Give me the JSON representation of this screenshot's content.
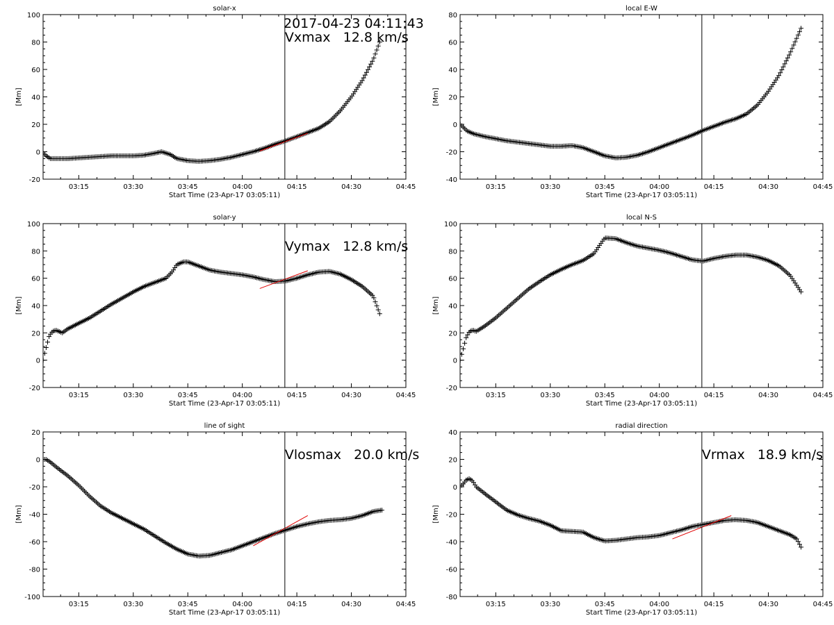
{
  "figure": {
    "timestamp": "2017-04-23 04:11:43"
  },
  "chart_data": [
    {
      "type": "scatter",
      "title": "solar-x",
      "ylabel": "[Mm]",
      "xlabel": "Start Time (23-Apr-17 03:05:11)",
      "annotation": "Vxmax   12.8 km/s",
      "ylim": [
        -20,
        100
      ],
      "yticks": [
        -20,
        0,
        20,
        40,
        60,
        80,
        100
      ],
      "xlim": [
        3.0864,
        4.75
      ],
      "xticks": [
        3.25,
        3.5,
        3.75,
        4.0,
        4.25,
        4.5,
        4.75
      ],
      "xticklabels": [
        "03:15",
        "03:30",
        "03:45",
        "04:00",
        "04:15",
        "04:30",
        "04:45"
      ],
      "vline_x": 4.195,
      "fit_line": {
        "x": [
          4.08,
          4.3
        ],
        "y": [
          0.5,
          13.5
        ]
      },
      "x": [
        3.087,
        3.1,
        3.12,
        3.15,
        3.2,
        3.25,
        3.3,
        3.35,
        3.4,
        3.45,
        3.5,
        3.55,
        3.6,
        3.63,
        3.67,
        3.7,
        3.75,
        3.8,
        3.85,
        3.9,
        3.95,
        4.0,
        4.05,
        4.1,
        4.15,
        4.2,
        4.25,
        4.3,
        4.35,
        4.4,
        4.45,
        4.5,
        4.55,
        4.6,
        4.63
      ],
      "y": [
        -1,
        -3,
        -5,
        -5,
        -5,
        -4.5,
        -4,
        -3.5,
        -3,
        -3,
        -3,
        -2.5,
        -1,
        0,
        -2,
        -5,
        -6.5,
        -7,
        -6.5,
        -5.5,
        -4,
        -2,
        0,
        2.5,
        5.5,
        8,
        11,
        14,
        17,
        22,
        30,
        40,
        52,
        67,
        80
      ]
    },
    {
      "type": "scatter",
      "title": "local E-W",
      "ylabel": "[Mm]",
      "xlabel": "Start Time (23-Apr-17 03:05:11)",
      "annotation": "",
      "ylim": [
        -40,
        80
      ],
      "yticks": [
        -40,
        -20,
        0,
        20,
        40,
        60,
        80
      ],
      "xlim": [
        3.0864,
        4.75
      ],
      "xticks": [
        3.25,
        3.5,
        3.75,
        4.0,
        4.25,
        4.5,
        4.75
      ],
      "xticklabels": [
        "03:15",
        "03:30",
        "03:45",
        "04:00",
        "04:15",
        "04:30",
        "04:45"
      ],
      "vline_x": 4.195,
      "fit_line": null,
      "x": [
        3.087,
        3.1,
        3.12,
        3.15,
        3.2,
        3.25,
        3.3,
        3.35,
        3.4,
        3.45,
        3.5,
        3.55,
        3.6,
        3.65,
        3.7,
        3.75,
        3.8,
        3.85,
        3.9,
        3.95,
        4.0,
        4.05,
        4.1,
        4.15,
        4.2,
        4.25,
        4.3,
        4.35,
        4.4,
        4.45,
        4.5,
        4.55,
        4.6,
        4.65
      ],
      "y": [
        0,
        -2,
        -5,
        -7,
        -9,
        -10.5,
        -12,
        -13,
        -14,
        -15,
        -16,
        -16,
        -15.5,
        -17,
        -20,
        -23,
        -24.5,
        -24,
        -22.5,
        -20,
        -17,
        -14,
        -11,
        -8,
        -4.5,
        -1.5,
        1.5,
        4,
        7.5,
        14,
        24,
        36,
        52,
        70
      ]
    },
    {
      "type": "scatter",
      "title": "solar-y",
      "ylabel": "[Mm]",
      "xlabel": "Start Time (23-Apr-17 03:05:11)",
      "annotation": "Vymax   12.8 km/s",
      "ylim": [
        -20,
        100
      ],
      "yticks": [
        -20,
        0,
        20,
        40,
        60,
        80,
        100
      ],
      "xlim": [
        3.0864,
        4.75
      ],
      "xticks": [
        3.25,
        3.5,
        3.75,
        4.0,
        4.25,
        4.5,
        4.75
      ],
      "xticklabels": [
        "03:15",
        "03:30",
        "03:45",
        "04:00",
        "04:15",
        "04:30",
        "04:45"
      ],
      "vline_x": 4.195,
      "fit_line": {
        "x": [
          4.08,
          4.3
        ],
        "y": [
          52.5,
          65.5
        ]
      },
      "x": [
        3.087,
        3.095,
        3.105,
        3.115,
        3.13,
        3.145,
        3.16,
        3.175,
        3.2,
        3.25,
        3.3,
        3.35,
        3.4,
        3.45,
        3.5,
        3.55,
        3.6,
        3.65,
        3.68,
        3.7,
        3.73,
        3.75,
        3.8,
        3.85,
        3.9,
        3.95,
        4.0,
        4.05,
        4.1,
        4.15,
        4.2,
        4.25,
        4.3,
        4.35,
        4.4,
        4.45,
        4.5,
        4.55,
        4.6,
        4.63
      ],
      "y": [
        0,
        6,
        12,
        18,
        21,
        22,
        21,
        20,
        23,
        27,
        31,
        36,
        41,
        45.5,
        50,
        54,
        57,
        60,
        65,
        70,
        72,
        72,
        69,
        66,
        64.5,
        63.5,
        62.5,
        61,
        59,
        57.5,
        58,
        60,
        62.5,
        64.5,
        65,
        63,
        59,
        54,
        47,
        34
      ]
    },
    {
      "type": "scatter",
      "title": "local N-S",
      "ylabel": "[Mm]",
      "xlabel": "Start Time (23-Apr-17 03:05:11)",
      "annotation": "",
      "ylim": [
        -20,
        100
      ],
      "yticks": [
        -20,
        0,
        20,
        40,
        60,
        80,
        100
      ],
      "xlim": [
        3.0864,
        4.75
      ],
      "xticks": [
        3.25,
        3.5,
        3.75,
        4.0,
        4.25,
        4.5,
        4.75
      ],
      "xticklabels": [
        "03:15",
        "03:30",
        "03:45",
        "04:00",
        "04:15",
        "04:30",
        "04:45"
      ],
      "vline_x": 4.195,
      "fit_line": null,
      "x": [
        3.087,
        3.095,
        3.105,
        3.115,
        3.13,
        3.145,
        3.16,
        3.2,
        3.25,
        3.3,
        3.35,
        3.4,
        3.45,
        3.5,
        3.55,
        3.6,
        3.65,
        3.7,
        3.73,
        3.75,
        3.8,
        3.85,
        3.9,
        3.95,
        4.0,
        4.05,
        4.1,
        4.15,
        4.2,
        4.25,
        4.3,
        4.35,
        4.4,
        4.45,
        4.5,
        4.55,
        4.6,
        4.65
      ],
      "y": [
        0,
        5,
        11,
        17,
        21,
        22,
        21,
        25,
        31,
        38,
        45,
        52,
        57.5,
        62.5,
        66.5,
        70,
        73,
        78,
        85,
        89.5,
        89,
        86,
        83.5,
        82,
        80.5,
        78.5,
        76,
        73.5,
        72.5,
        74.5,
        76,
        77,
        77,
        75.5,
        73,
        69,
        62,
        50
      ]
    },
    {
      "type": "scatter",
      "title": "line of sight",
      "ylabel": "[Mm]",
      "xlabel": "Start Time (23-Apr-17 03:05:11)",
      "annotation": "Vlosmax   20.0 km/s",
      "ylim": [
        -100,
        20
      ],
      "yticks": [
        -100,
        -80,
        -60,
        -40,
        -20,
        0,
        20
      ],
      "xlim": [
        3.0864,
        4.75
      ],
      "xticks": [
        3.25,
        3.5,
        3.75,
        4.0,
        4.25,
        4.5,
        4.75
      ],
      "xticklabels": [
        "03:15",
        "03:30",
        "03:45",
        "04:00",
        "04:15",
        "04:30",
        "04:45"
      ],
      "vline_x": 4.195,
      "fit_line": {
        "x": [
          4.05,
          4.3
        ],
        "y": [
          -63,
          -41
        ]
      },
      "x": [
        3.087,
        3.1,
        3.12,
        3.15,
        3.2,
        3.25,
        3.3,
        3.35,
        3.4,
        3.45,
        3.5,
        3.55,
        3.6,
        3.65,
        3.7,
        3.75,
        3.8,
        3.85,
        3.9,
        3.95,
        4.0,
        4.05,
        4.1,
        4.15,
        4.2,
        4.25,
        4.3,
        4.35,
        4.4,
        4.45,
        4.5,
        4.55,
        4.6,
        4.64
      ],
      "y": [
        0,
        0,
        -2,
        -6,
        -12,
        -19,
        -27,
        -34,
        -39,
        -43,
        -47,
        -51,
        -56,
        -61,
        -65.5,
        -69,
        -70.5,
        -70,
        -68,
        -66,
        -63,
        -60,
        -57,
        -54,
        -51.5,
        -49,
        -47,
        -45.5,
        -44.5,
        -44,
        -43,
        -41,
        -38,
        -37
      ]
    },
    {
      "type": "scatter",
      "title": "radial direction",
      "ylabel": "[Mm]",
      "xlabel": "Start Time (23-Apr-17 03:05:11)",
      "annotation": "Vrmax   18.9 km/s",
      "ylim": [
        -80,
        40
      ],
      "yticks": [
        -80,
        -60,
        -40,
        -20,
        0,
        20,
        40
      ],
      "xlim": [
        3.0864,
        4.75
      ],
      "xticks": [
        3.25,
        3.5,
        3.75,
        4.0,
        4.25,
        4.5,
        4.75
      ],
      "xticklabels": [
        "03:15",
        "03:30",
        "03:45",
        "04:00",
        "04:15",
        "04:30",
        "04:45"
      ],
      "vline_x": 4.195,
      "fit_line": {
        "x": [
          4.06,
          4.33
        ],
        "y": [
          -38,
          -21
        ]
      },
      "x": [
        3.087,
        3.1,
        3.115,
        3.13,
        3.145,
        3.16,
        3.2,
        3.25,
        3.3,
        3.35,
        3.4,
        3.45,
        3.5,
        3.55,
        3.6,
        3.65,
        3.7,
        3.75,
        3.8,
        3.85,
        3.9,
        3.95,
        4.0,
        4.05,
        4.1,
        4.15,
        4.2,
        4.25,
        4.3,
        4.35,
        4.4,
        4.45,
        4.5,
        4.55,
        4.6,
        4.63,
        4.65
      ],
      "y": [
        0,
        2,
        5,
        6,
        4,
        0,
        -5,
        -11,
        -17,
        -20.5,
        -23,
        -25,
        -28,
        -32,
        -32.5,
        -33,
        -37,
        -39.5,
        -39,
        -38,
        -37,
        -36.5,
        -35.5,
        -33.5,
        -31.5,
        -29,
        -27.5,
        -26,
        -24.5,
        -24,
        -24.5,
        -26,
        -29,
        -32,
        -35,
        -38,
        -44
      ]
    }
  ]
}
